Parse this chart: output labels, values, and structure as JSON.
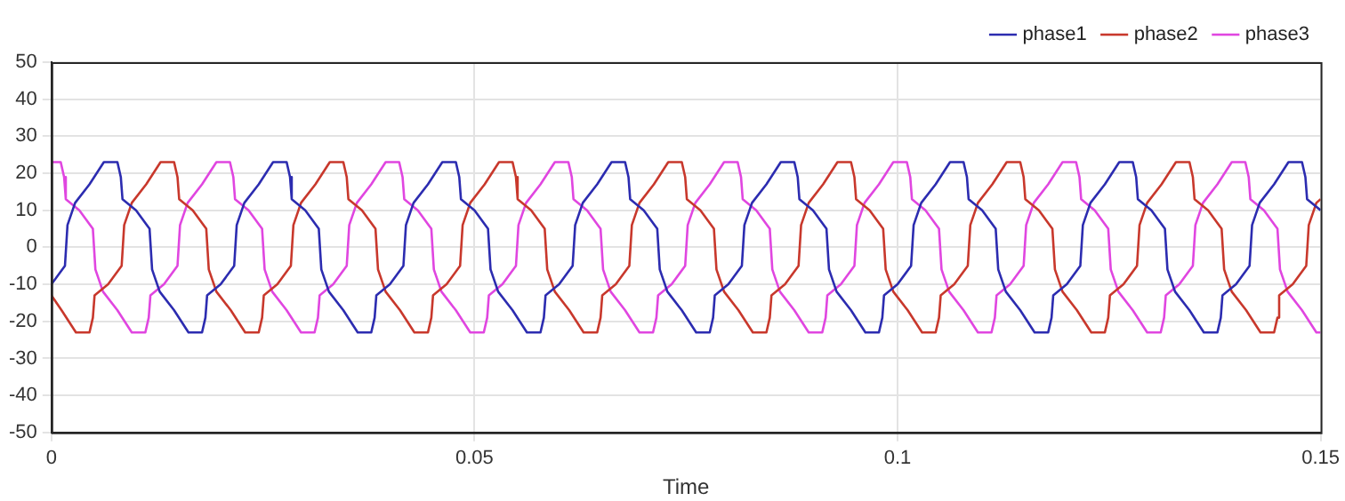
{
  "chart_data": {
    "type": "line",
    "xlabel": "Time",
    "xlim": [
      0,
      0.15
    ],
    "xticks": [
      0,
      0.05,
      0.1,
      0.15
    ],
    "ylim": [
      -50,
      50
    ],
    "yticks": [
      -50,
      -40,
      -30,
      -20,
      -10,
      0,
      10,
      20,
      30,
      40,
      50
    ],
    "grid": true,
    "legend": "top right",
    "marker": "none",
    "line_style": "solid",
    "series": [
      {
        "name": "phase1",
        "color": "#2c2cb0",
        "x": [
          0,
          0.0016,
          0.0019,
          0.0028,
          0.0045,
          0.0062,
          0.0078,
          0.0082,
          0.0084,
          0.01,
          0.0116,
          0.0119,
          0.0128,
          0.0145,
          0.0162,
          0.0178,
          0.0182,
          0.0184,
          0.02,
          0.0216,
          0.0219,
          0.0228,
          0.0245,
          0.0262,
          0.0278,
          0.0282,
          0.0284,
          0.03,
          0.0316,
          0.0319,
          0.0328,
          0.0345,
          0.0362,
          0.0378,
          0.0382,
          0.0384,
          0.04,
          0.0416,
          0.0419,
          0.0428,
          0.0445,
          0.0462,
          0.0478,
          0.0482,
          0.0484,
          0.05,
          0.0516,
          0.0519,
          0.0528,
          0.0545,
          0.0562,
          0.0578,
          0.0582,
          0.0584,
          0.06,
          0.0616,
          0.0619,
          0.0628,
          0.0645,
          0.0662,
          0.0678,
          0.0682,
          0.0684,
          0.07,
          0.0716,
          0.0719,
          0.0728,
          0.0745,
          0.0762,
          0.0778,
          0.0782,
          0.0784,
          0.08,
          0.0816,
          0.0819,
          0.0828,
          0.0845,
          0.0862,
          0.0878,
          0.0882,
          0.0884,
          0.09,
          0.0916,
          0.0919,
          0.0928,
          0.0945,
          0.0962,
          0.0978,
          0.0982,
          0.0984,
          0.1,
          0.1016,
          0.1019,
          0.1028,
          0.1045,
          0.1062,
          0.1078,
          0.1082,
          0.1084,
          0.11,
          0.1116,
          0.1119,
          0.1128,
          0.1145,
          0.1162,
          0.1178,
          0.1182,
          0.1184,
          0.12,
          0.1216,
          0.1219,
          0.1228,
          0.1245,
          0.1262,
          0.1278,
          0.1282,
          0.1284,
          0.13,
          0.1316,
          0.1319,
          0.1328,
          0.1345,
          0.1362,
          0.1378,
          0.1382,
          0.1384,
          0.14,
          0.1416,
          0.1419,
          0.1428,
          0.1445,
          0.1462,
          0.1478,
          0.1482,
          0.1484,
          0.15
        ],
        "values": [
          -10,
          -5,
          6,
          12,
          17,
          23,
          23,
          19,
          13,
          10,
          5,
          -6,
          -12,
          -17,
          -23,
          -23,
          -19,
          -13,
          -10,
          -5,
          6,
          12,
          17,
          23,
          23,
          19,
          13,
          10,
          5,
          -6,
          -12,
          -17,
          -23,
          -23,
          -19,
          -13,
          -10,
          -5,
          6,
          12,
          17,
          23,
          23,
          19,
          13,
          10,
          5,
          -6,
          -12,
          -17,
          -23,
          -23,
          -19,
          -13,
          -10,
          -5,
          6,
          12,
          17,
          23,
          23,
          19,
          13,
          10,
          5,
          -6,
          -12,
          -17,
          -23,
          -23,
          -19,
          -13,
          -10,
          -5,
          6,
          12,
          17,
          23,
          23,
          19,
          13,
          10,
          5,
          -6,
          -12,
          -17,
          -23,
          -23,
          -19,
          -13,
          -10,
          -5,
          6,
          12,
          17,
          23,
          23,
          19,
          13,
          10,
          5,
          -6,
          -12,
          -17,
          -23,
          -23,
          -19,
          -13,
          -10,
          -5,
          6,
          12,
          17,
          23,
          23,
          19,
          13,
          10,
          5,
          -6,
          -12,
          -17,
          -23,
          -23,
          -19,
          -13,
          -10,
          -5,
          6,
          12,
          17,
          23,
          23,
          19,
          13,
          10
        ]
      },
      {
        "name": "phase2",
        "color": "#c8382c",
        "x": [
          0,
          0.0012,
          0.0029,
          0.0045,
          0.0049,
          0.0051,
          0.0067,
          0.0083,
          0.0086,
          0.0095,
          0.0112,
          0.0129,
          0.0145,
          0.0149,
          0.0151,
          0.0167,
          0.0183,
          0.0186,
          0.0195,
          0.0212,
          0.0229,
          0.0245,
          0.0249,
          0.0251,
          0.0267,
          0.0283,
          0.0286,
          0.0295,
          0.0312,
          0.0329,
          0.0345,
          0.0349,
          0.0351,
          0.0367,
          0.0383,
          0.0386,
          0.0395,
          0.0412,
          0.0429,
          0.0445,
          0.0449,
          0.0451,
          0.0467,
          0.0483,
          0.0486,
          0.0495,
          0.0512,
          0.0529,
          0.0545,
          0.0549,
          0.0551,
          0.0567,
          0.0583,
          0.0586,
          0.0595,
          0.0612,
          0.0629,
          0.0645,
          0.0649,
          0.0651,
          0.0667,
          0.0683,
          0.0686,
          0.0695,
          0.0712,
          0.0729,
          0.0745,
          0.0749,
          0.0751,
          0.0767,
          0.0783,
          0.0786,
          0.0795,
          0.0812,
          0.0829,
          0.0845,
          0.0849,
          0.0851,
          0.0867,
          0.0883,
          0.0886,
          0.0895,
          0.0912,
          0.0929,
          0.0945,
          0.0949,
          0.0951,
          0.0967,
          0.0983,
          0.0986,
          0.0995,
          0.1012,
          0.1029,
          0.1045,
          0.1049,
          0.1051,
          0.1067,
          0.1083,
          0.1086,
          0.1095,
          0.1112,
          0.1129,
          0.1145,
          0.1149,
          0.1151,
          0.1167,
          0.1183,
          0.1186,
          0.1195,
          0.1212,
          0.1229,
          0.1245,
          0.1249,
          0.1251,
          0.1267,
          0.1283,
          0.1286,
          0.1295,
          0.1312,
          0.1329,
          0.1345,
          0.1349,
          0.1351,
          0.1367,
          0.1383,
          0.1386,
          0.1395,
          0.1412,
          0.1429,
          0.1445,
          0.1449,
          0.1451,
          0.1467,
          0.1483,
          0.1486,
          0.1495,
          0.15
        ],
        "values": [
          -13,
          -17,
          -23,
          -23,
          -19,
          -13,
          -10,
          -5,
          6,
          12,
          17,
          23,
          23,
          19,
          13,
          10,
          5,
          -6,
          -12,
          -17,
          -23,
          -23,
          -19,
          -13,
          -10,
          -5,
          6,
          12,
          17,
          23,
          23,
          19,
          13,
          10,
          5,
          -6,
          -12,
          -17,
          -23,
          -23,
          -19,
          -13,
          -10,
          -5,
          6,
          12,
          17,
          23,
          23,
          19,
          13,
          10,
          5,
          -6,
          -12,
          -17,
          -23,
          -23,
          -19,
          -13,
          -10,
          -5,
          6,
          12,
          17,
          23,
          23,
          19,
          13,
          10,
          5,
          -6,
          -12,
          -17,
          -23,
          -23,
          -19,
          -13,
          -10,
          -5,
          6,
          12,
          17,
          23,
          23,
          19,
          13,
          10,
          5,
          -6,
          -12,
          -17,
          -23,
          -23,
          -19,
          -13,
          -10,
          -5,
          6,
          12,
          17,
          23,
          23,
          19,
          13,
          10,
          5,
          -6,
          -12,
          -17,
          -23,
          -23,
          -19,
          -13,
          -10,
          -5,
          6,
          12,
          17,
          23,
          23,
          19,
          13,
          10,
          5,
          -6,
          -12,
          -17,
          -23,
          -23,
          -19,
          -13,
          -10,
          -5,
          6,
          12,
          13
        ]
      },
      {
        "name": "phase3",
        "color": "#e046e0",
        "x": [
          0,
          0.0011,
          0.0015,
          0.0017,
          0.0033,
          0.0049,
          0.0052,
          0.0061,
          0.0078,
          0.0095,
          0.0111,
          0.0115,
          0.0117,
          0.0133,
          0.0149,
          0.0152,
          0.0161,
          0.0178,
          0.0195,
          0.0211,
          0.0215,
          0.0217,
          0.0233,
          0.0249,
          0.0252,
          0.0261,
          0.0278,
          0.0295,
          0.0311,
          0.0315,
          0.0317,
          0.0333,
          0.0349,
          0.0352,
          0.0361,
          0.0378,
          0.0395,
          0.0411,
          0.0415,
          0.0417,
          0.0433,
          0.0449,
          0.0452,
          0.0461,
          0.0478,
          0.0495,
          0.0511,
          0.0515,
          0.0517,
          0.0533,
          0.0549,
          0.0552,
          0.0561,
          0.0578,
          0.0595,
          0.0611,
          0.0615,
          0.0617,
          0.0633,
          0.0649,
          0.0652,
          0.0661,
          0.0678,
          0.0695,
          0.0711,
          0.0715,
          0.0717,
          0.0733,
          0.0749,
          0.0752,
          0.0761,
          0.0778,
          0.0795,
          0.0811,
          0.0815,
          0.0817,
          0.0833,
          0.0849,
          0.0852,
          0.0861,
          0.0878,
          0.0895,
          0.0911,
          0.0915,
          0.0917,
          0.0933,
          0.0949,
          0.0952,
          0.0961,
          0.0978,
          0.0995,
          0.1011,
          0.1015,
          0.1017,
          0.1033,
          0.1049,
          0.1052,
          0.1061,
          0.1078,
          0.1095,
          0.1111,
          0.1115,
          0.1117,
          0.1133,
          0.1149,
          0.1152,
          0.1161,
          0.1178,
          0.1195,
          0.1211,
          0.1215,
          0.1217,
          0.1233,
          0.1249,
          0.1252,
          0.1261,
          0.1278,
          0.1295,
          0.1311,
          0.1315,
          0.1317,
          0.1333,
          0.1349,
          0.1352,
          0.1361,
          0.1378,
          0.1395,
          0.1411,
          0.1415,
          0.1417,
          0.1433,
          0.1449,
          0.1452,
          0.1461,
          0.1478,
          0.1495,
          0.15
        ],
        "values": [
          23,
          23,
          19,
          13,
          10,
          5,
          -6,
          -12,
          -17,
          -23,
          -23,
          -19,
          -13,
          -10,
          -5,
          6,
          12,
          17,
          23,
          23,
          19,
          13,
          10,
          5,
          -6,
          -12,
          -17,
          -23,
          -23,
          -19,
          -13,
          -10,
          -5,
          6,
          12,
          17,
          23,
          23,
          19,
          13,
          10,
          5,
          -6,
          -12,
          -17,
          -23,
          -23,
          -19,
          -13,
          -10,
          -5,
          6,
          12,
          17,
          23,
          23,
          19,
          13,
          10,
          5,
          -6,
          -12,
          -17,
          -23,
          -23,
          -19,
          -13,
          -10,
          -5,
          6,
          12,
          17,
          23,
          23,
          19,
          13,
          10,
          5,
          -6,
          -12,
          -17,
          -23,
          -23,
          -19,
          -13,
          -10,
          -5,
          6,
          12,
          17,
          23,
          23,
          19,
          13,
          10,
          5,
          -6,
          -12,
          -17,
          -23,
          -23,
          -19,
          -13,
          -10,
          -5,
          6,
          12,
          17,
          23,
          23,
          19,
          13,
          10,
          5,
          -6,
          -12,
          -17,
          -23,
          -23,
          -19,
          -13,
          -10,
          -5,
          6,
          12,
          17,
          23,
          23,
          19,
          13,
          10,
          5,
          -6,
          -12,
          -17,
          -23,
          -23
        ]
      }
    ]
  }
}
